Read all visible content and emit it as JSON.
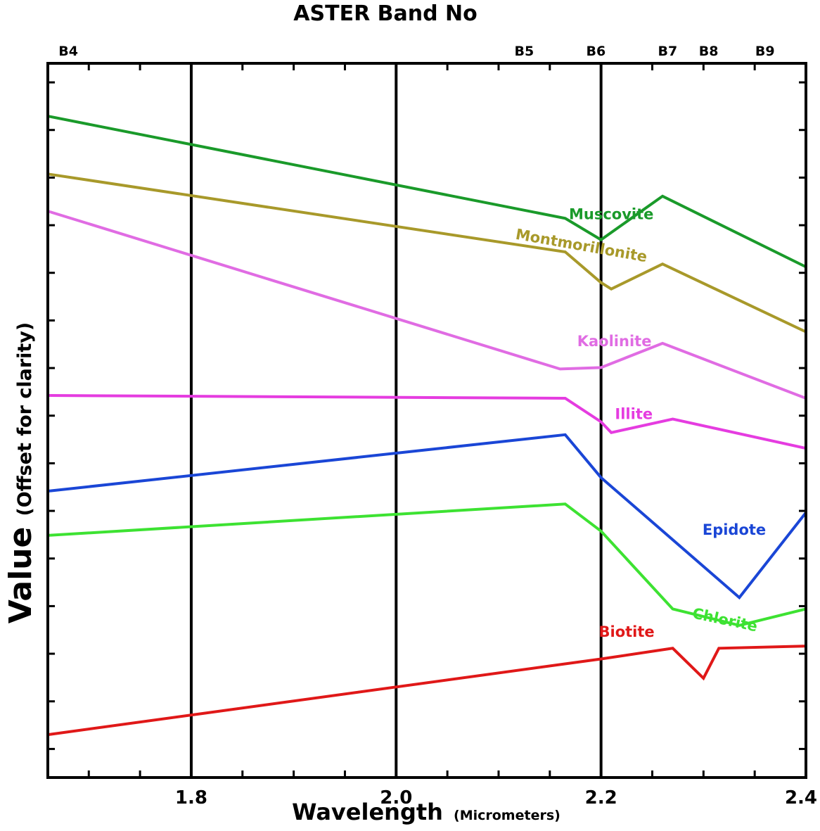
{
  "chart_data": {
    "type": "line",
    "title": "ASTER Band No",
    "xlabel": "Wavelength",
    "xlabel_unit": "(Micrometers)",
    "ylabel": "Value",
    "ylabel_note": "(Offset for clarity)",
    "xlim": [
      1.66,
      2.4
    ],
    "ylim": [
      0,
      100
    ],
    "x_ticks": [
      1.8,
      2.0,
      2.2,
      2.4
    ],
    "x_tick_labels": [
      "1.8",
      "2.0",
      "2.2",
      "2.4"
    ],
    "vertical_lines": [
      1.8,
      2.0,
      2.2
    ],
    "y_tick_count": 15,
    "bands": [
      {
        "label": "B4",
        "x": 1.68
      },
      {
        "label": "B5",
        "x": 2.125
      },
      {
        "label": "B6",
        "x": 2.195
      },
      {
        "label": "B7",
        "x": 2.265
      },
      {
        "label": "B8",
        "x": 2.305
      },
      {
        "label": "B9",
        "x": 2.36
      }
    ],
    "series": [
      {
        "name": "Muscovite",
        "color": "#1a9a2a",
        "label_at": [
          2.21,
          78.2
        ],
        "points": [
          [
            1.66,
            92.6
          ],
          [
            2.165,
            78.3
          ],
          [
            2.2,
            75.3
          ],
          [
            2.26,
            81.4
          ],
          [
            2.4,
            71.5
          ]
        ]
      },
      {
        "name": "Montmorillonite",
        "color": "#a8992a",
        "label_at": [
          2.18,
          73.8
        ],
        "label_rotate": 10,
        "points": [
          [
            1.66,
            84.5
          ],
          [
            2.165,
            73.6
          ],
          [
            2.2,
            69.3
          ],
          [
            2.21,
            68.4
          ],
          [
            2.26,
            71.9
          ],
          [
            2.4,
            62.4
          ]
        ]
      },
      {
        "name": "Kaolinite",
        "color": "#e06ce3",
        "label_at": [
          2.213,
          60.4
        ],
        "points": [
          [
            1.66,
            79.3
          ],
          [
            2.16,
            57.2
          ],
          [
            2.2,
            57.4
          ],
          [
            2.26,
            60.8
          ],
          [
            2.4,
            53.1
          ]
        ]
      },
      {
        "name": "Illite",
        "color": "#e53ce0",
        "label_at": [
          2.232,
          50.2
        ],
        "points": [
          [
            1.66,
            53.5
          ],
          [
            2.165,
            53.1
          ],
          [
            2.2,
            49.8
          ],
          [
            2.21,
            48.3
          ],
          [
            2.27,
            50.2
          ],
          [
            2.4,
            46.1
          ]
        ]
      },
      {
        "name": "Epidote",
        "color": "#1a46d6",
        "label_at": [
          2.33,
          34.0
        ],
        "points": [
          [
            1.66,
            40.1
          ],
          [
            2.165,
            48.0
          ],
          [
            2.2,
            42.0
          ],
          [
            2.335,
            25.2
          ],
          [
            2.4,
            37.1
          ]
        ]
      },
      {
        "name": "Chlorite",
        "color": "#3de232",
        "label_at": [
          2.32,
          21.4
        ],
        "label_rotate": 12,
        "points": [
          [
            1.66,
            33.9
          ],
          [
            2.165,
            38.3
          ],
          [
            2.2,
            34.5
          ],
          [
            2.27,
            23.6
          ],
          [
            2.335,
            21.3
          ],
          [
            2.4,
            23.6
          ]
        ]
      },
      {
        "name": "Biotite",
        "color": "#e01818",
        "label_at": [
          2.225,
          19.7
        ],
        "points": [
          [
            1.66,
            6.0
          ],
          [
            2.2,
            16.6
          ],
          [
            2.27,
            18.1
          ],
          [
            2.3,
            13.9
          ],
          [
            2.315,
            18.1
          ],
          [
            2.4,
            18.4
          ]
        ]
      }
    ]
  }
}
